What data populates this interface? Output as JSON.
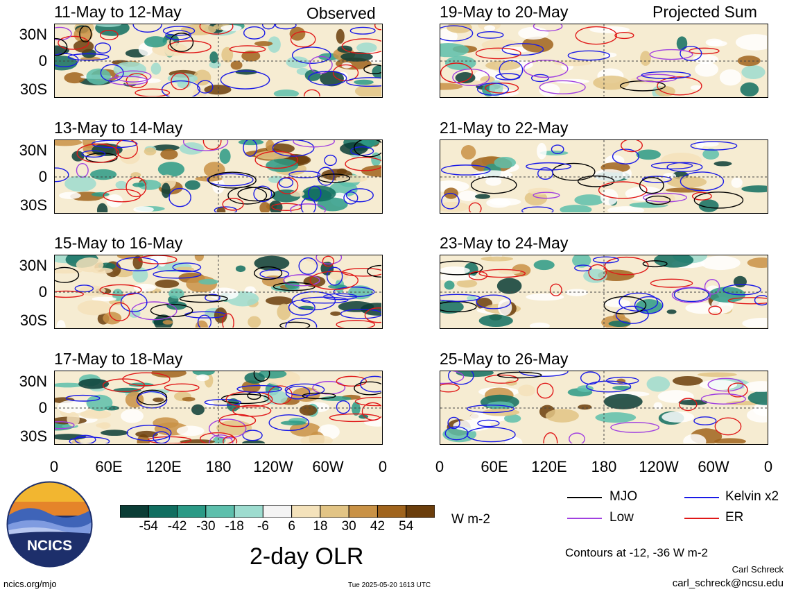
{
  "left_header": "Observed",
  "right_header": "Projected Sum",
  "observed_panels": [
    "11-May to 12-May",
    "13-May to 14-May",
    "15-May to 16-May",
    "17-May to 18-May"
  ],
  "projected_panels": [
    "19-May to 20-May",
    "21-May to 22-May",
    "23-May to 24-May",
    "25-May to 26-May"
  ],
  "lat_labels": [
    "30N",
    "0",
    "30S"
  ],
  "lon_labels": [
    "0",
    "60E",
    "120E",
    "180",
    "120W",
    "60W",
    "0"
  ],
  "colorbar": {
    "labels": [
      "-54",
      "-42",
      "-30",
      "-18",
      "-6",
      "6",
      "18",
      "30",
      "42",
      "54"
    ],
    "colors": [
      "#0b3d36",
      "#116e60",
      "#2b9a86",
      "#5dbfac",
      "#9ddccf",
      "#f4f4f4",
      "#f4e2bb",
      "#e2c485",
      "#c99246",
      "#a0641d",
      "#6b3e0c"
    ],
    "unit": "W m-2"
  },
  "map_title": "2-day OLR",
  "legend": [
    {
      "label": "MJO",
      "color": "#000000"
    },
    {
      "label": "Kelvin x2",
      "color": "#1a1ae6"
    },
    {
      "label": "Low",
      "color": "#a040e0"
    },
    {
      "label": "ER",
      "color": "#e01818"
    }
  ],
  "contours_note": "Contours at -12, -36 W m-2",
  "author": "Carl Schreck",
  "email": "carl_schreck@ncsu.edu",
  "website": "ncics.org/mjo",
  "timestamp": "Tue 2025-05-20 1613 UTC",
  "logo_text": "NCICS"
}
